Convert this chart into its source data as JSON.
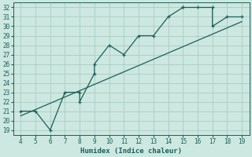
{
  "xlabel": "Humidex (Indice chaleur)",
  "ylabel": "",
  "bg_color": "#cce8e0",
  "grid_color": "#aaccc4",
  "line_color": "#1a6058",
  "x_data": [
    4,
    5,
    6,
    7,
    8,
    8,
    9,
    9,
    10,
    11,
    12,
    13,
    14,
    15,
    15,
    16,
    17,
    17,
    18,
    19
  ],
  "y_data": [
    21,
    21,
    19,
    23,
    23,
    22,
    25,
    26,
    28,
    27,
    29,
    29,
    31,
    32,
    32,
    32,
    32,
    30,
    31,
    31
  ],
  "trend_x": [
    4,
    19
  ],
  "trend_y": [
    20.5,
    30.5
  ],
  "xlim": [
    3.5,
    19.5
  ],
  "ylim": [
    18.5,
    32.5
  ],
  "xticks": [
    4,
    5,
    6,
    7,
    8,
    9,
    10,
    11,
    12,
    13,
    14,
    15,
    16,
    17,
    18,
    19
  ],
  "yticks": [
    19,
    20,
    21,
    22,
    23,
    24,
    25,
    26,
    27,
    28,
    29,
    30,
    31,
    32
  ],
  "tick_fontsize": 5.5,
  "label_fontsize": 6.5,
  "marker": "+"
}
